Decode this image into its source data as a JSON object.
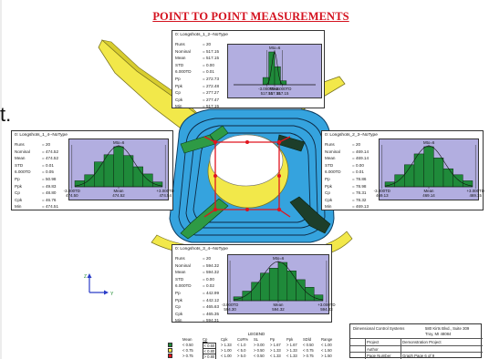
{
  "page": {
    "title": "POINT TO POINT MEASUREMENTS",
    "cut_text": "t.",
    "colors": {
      "title": "#d4121f",
      "histogram_bg": "#b2aee0",
      "bar_fill": "#1f8a3a",
      "part_cyan": "#35a3de",
      "part_yellow": "#f2e84a",
      "measure_red": "#e1141e"
    }
  },
  "panels": [
    {
      "id": "p12",
      "title": "0: Longshots_1_2--NoType",
      "stats": [
        {
          "label": "Runs",
          "value": "=      20"
        },
        {
          "label": "Nominal",
          "value": "=  517.15"
        },
        {
          "label": "Mean",
          "value": "=  517.15"
        },
        {
          "label": "STD",
          "value": "=    0.00"
        },
        {
          "label": "6.000TD",
          "value": "=    0.01"
        },
        {
          "label": "Pp",
          "value": "=  272.73"
        },
        {
          "label": "Ppk",
          "value": "=  272.48"
        },
        {
          "label": "Cp",
          "value": "=  277.27"
        },
        {
          "label": "Cpk",
          "value": "=  277.47"
        },
        {
          "label": "Min",
          "value": "=  517.15"
        }
      ],
      "hist_title": "Mto=6",
      "x_labels": [
        "-3.000TD\n517.15",
        "Mean\n517.15",
        "+3.000TD\n517.15"
      ],
      "bars": [
        0,
        0,
        0,
        0,
        0,
        0.22,
        1.0,
        0.55,
        0.12,
        0,
        0,
        0,
        0,
        0
      ],
      "curve_sigma": 0.45
    },
    {
      "id": "p14",
      "title": "0: Longshots_1_4--NoType",
      "stats": [
        {
          "label": "Runs",
          "value": "=      20"
        },
        {
          "label": "Nominal",
          "value": "=  474.52"
        },
        {
          "label": "Mean",
          "value": "=  474.52"
        },
        {
          "label": "STD",
          "value": "=    0.01"
        },
        {
          "label": "6.000TD",
          "value": "=    0.05"
        },
        {
          "label": "Pp",
          "value": "=   50.98"
        },
        {
          "label": "Ppk",
          "value": "=   49.83"
        },
        {
          "label": "Cp",
          "value": "=   48.80"
        },
        {
          "label": "Cpk",
          "value": "=   46.76"
        },
        {
          "label": "Min",
          "value": "=  474.51"
        }
      ],
      "hist_title": "Mto=6",
      "x_labels": [
        "-3.000TD\n474.50",
        "Mean\n474.52",
        "+3.000TD\n474.54"
      ],
      "bars": [
        0.15,
        0.3,
        0.62,
        0.8,
        1.0,
        0.78,
        0.5,
        0.32,
        0.12
      ],
      "curve_sigma": 1.6
    },
    {
      "id": "p23",
      "title": "0: Longshots_2_3--NoType",
      "stats": [
        {
          "label": "Runs",
          "value": "=      20"
        },
        {
          "label": "Nominal",
          "value": "=  469.14"
        },
        {
          "label": "Mean",
          "value": "=  469.14"
        },
        {
          "label": "STD",
          "value": "=    0.00"
        },
        {
          "label": "6.000TD",
          "value": "=    0.01"
        },
        {
          "label": "Pp",
          "value": "=   78.86"
        },
        {
          "label": "Ppk",
          "value": "=   78.98"
        },
        {
          "label": "Cp",
          "value": "=   78.31"
        },
        {
          "label": "Cpk",
          "value": "=   78.32"
        },
        {
          "label": "Min",
          "value": "=  469.13"
        }
      ],
      "hist_title": "Mto=6",
      "x_labels": [
        "-3.000TD\n469.13",
        "Mean\n469.14",
        "+3.000TD\n469.15"
      ],
      "bars": [
        0.12,
        0.3,
        0.55,
        0.82,
        1.0,
        0.72,
        0.45,
        0.3,
        0.15
      ],
      "curve_sigma": 1.6
    },
    {
      "id": "p34",
      "title": "0: Longshots_3_4--NoType",
      "stats": [
        {
          "label": "Runs",
          "value": "=      20"
        },
        {
          "label": "Nominal",
          "value": "=  594.32"
        },
        {
          "label": "Mean",
          "value": "=  594.32"
        },
        {
          "label": "STD",
          "value": "=    0.00"
        },
        {
          "label": "6.000TD",
          "value": "=    0.02"
        },
        {
          "label": "Pp",
          "value": "=  442.99"
        },
        {
          "label": "Ppk",
          "value": "=  442.12"
        },
        {
          "label": "Cp",
          "value": "=  465.63"
        },
        {
          "label": "Cpk",
          "value": "=  465.35"
        },
        {
          "label": "Min",
          "value": "=  594.31"
        }
      ],
      "hist_title": "Mto=6",
      "x_labels": [
        "-3.000TD\n594.30",
        "Mean\n594.32",
        "+3.000TD\n594.33"
      ],
      "bars": [
        0.1,
        0.25,
        0.48,
        0.72,
        0.85,
        1.0,
        0.78,
        0.55,
        0.35,
        0.15
      ],
      "curve_sigma": 1.8
    }
  ],
  "axis": {
    "z": "Z",
    "y": "Y"
  },
  "legend": {
    "title": "LEGEND",
    "headers": [
      "Mean",
      "Cp",
      "Cpk",
      "CoR%",
      "SL",
      "Pp",
      "Ppk",
      "SDld",
      "Range"
    ],
    "rows": [
      {
        "color": "#1f8a3a",
        "cells": [
          "< 0.50",
          "< 0.60",
          "> 1.33",
          "< 1.0",
          "> 0.00",
          "> 1.67",
          "> 1.67",
          "< 0.50",
          "< 1.00"
        ]
      },
      {
        "color": "#f2e84a",
        "cells": [
          "< 0.75",
          "< 0.80",
          "> 1.00",
          "< 5.0",
          "> 0.50",
          "> 1.33",
          "> 1.33",
          "< 0.75",
          "< 1.50"
        ]
      },
      {
        "color": "#e1141e",
        "cells": [
          "> 0.75",
          "> 0.80",
          "< 1.00",
          "> 5.0",
          "< 0.50",
          "< 1.33",
          "< 1.33",
          "> 0.75",
          "> 1.50"
        ]
      }
    ]
  },
  "info": {
    "company": "Dimensional Control Systems",
    "address1": "580 Kirts Blvd., Suite 309",
    "address2": "Troy, MI 48084",
    "rows": [
      {
        "label": "Project",
        "value": "Demonstration Project"
      },
      {
        "label": "Author",
        "value": ""
      },
      {
        "label": "Page Number",
        "value": "Graph Page 6 of 9"
      }
    ]
  }
}
